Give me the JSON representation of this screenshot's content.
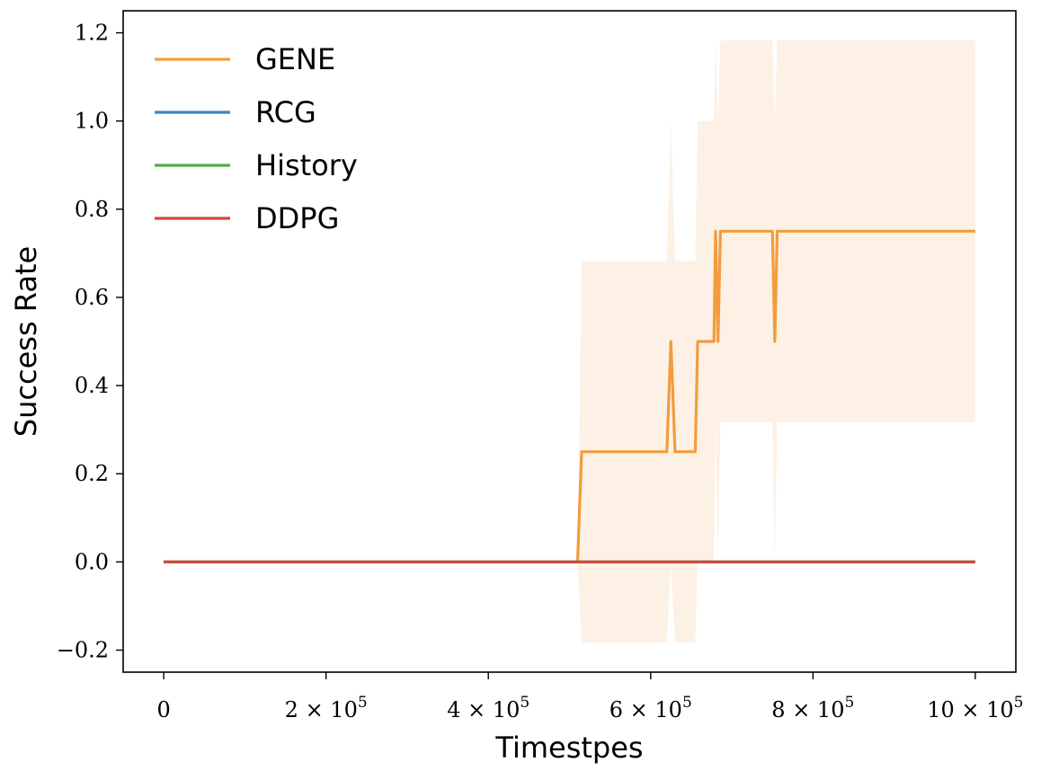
{
  "chart_data": {
    "type": "line",
    "title": "",
    "xlabel": "Timestpes",
    "ylabel": "Success Rate",
    "xlim": [
      -50000,
      1050000
    ],
    "ylim": [
      -0.25,
      1.25
    ],
    "x_ticks": [
      {
        "value": 0,
        "mant": "",
        "label": "0"
      },
      {
        "value": 200000,
        "mant": "2",
        "label": "2×10^5"
      },
      {
        "value": 400000,
        "mant": "4",
        "label": "4×10^5"
      },
      {
        "value": 600000,
        "mant": "6",
        "label": "6×10^5"
      },
      {
        "value": 800000,
        "mant": "8",
        "label": "8×10^5"
      },
      {
        "value": 1000000,
        "mant": "10",
        "label": "10×10^5"
      }
    ],
    "x_tick_base": "10",
    "x_tick_exp": "5",
    "x_tick_times": "×",
    "y_ticks": [
      {
        "value": -0.2,
        "label": "−0.2"
      },
      {
        "value": 0.0,
        "label": "0.0"
      },
      {
        "value": 0.2,
        "label": "0.2"
      },
      {
        "value": 0.4,
        "label": "0.4"
      },
      {
        "value": 0.6,
        "label": "0.6"
      },
      {
        "value": 0.8,
        "label": "0.8"
      },
      {
        "value": 1.0,
        "label": "1.0"
      },
      {
        "value": 1.2,
        "label": "1.2"
      }
    ],
    "grid": false,
    "legend_position": "upper-left",
    "series": [
      {
        "name": "GENE",
        "color": "#f39c3d",
        "x": [
          0,
          510000,
          515000,
          620000,
          625000,
          630000,
          655000,
          658000,
          678000,
          680000,
          683000,
          686000,
          750000,
          753000,
          756000,
          1000000
        ],
        "y": [
          0,
          0,
          0.25,
          0.25,
          0.5,
          0.25,
          0.25,
          0.5,
          0.5,
          0.75,
          0.5,
          0.75,
          0.75,
          0.5,
          0.75,
          0.75
        ],
        "band": {
          "x": [
            0,
            510000,
            515000,
            620000,
            625000,
            630000,
            655000,
            658000,
            678000,
            680000,
            683000,
            686000,
            750000,
            753000,
            756000,
            1000000
          ],
          "lower": [
            0,
            0,
            -0.183,
            -0.183,
            0.0,
            -0.183,
            -0.183,
            0.0,
            0.0,
            0.317,
            0.0,
            0.317,
            0.317,
            0.0,
            0.317,
            0.317
          ],
          "upper": [
            0,
            0,
            0.683,
            0.683,
            1.0,
            0.683,
            0.683,
            1.0,
            1.0,
            1.183,
            1.0,
            1.183,
            1.183,
            1.0,
            1.183,
            1.183
          ],
          "color": "#fdf1e6"
        }
      },
      {
        "name": "RCG",
        "color": "#3e84c2",
        "x": [
          0,
          1000000
        ],
        "y": [
          0,
          0
        ]
      },
      {
        "name": "History",
        "color": "#55aa48",
        "x": [
          0,
          1000000
        ],
        "y": [
          0,
          0
        ]
      },
      {
        "name": "DDPG",
        "color": "#d2483c",
        "x": [
          0,
          1000000
        ],
        "y": [
          0,
          0
        ]
      }
    ]
  }
}
